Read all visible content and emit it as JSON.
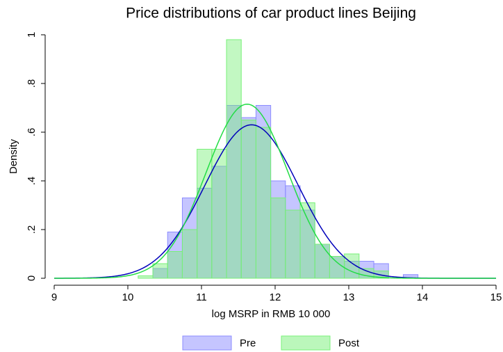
{
  "chart_data": {
    "type": "histogram",
    "title": "Price distributions of car product lines Beijing",
    "x_label": "log MSRP in RMB 10 000",
    "y_label": "Density",
    "bins": [
      10.14,
      10.34,
      10.54,
      10.74,
      10.94,
      11.14,
      11.34,
      11.54,
      11.74,
      11.94,
      12.14,
      12.34,
      12.54,
      12.74,
      12.94,
      13.14,
      13.34,
      13.54,
      13.74,
      13.94,
      14.14
    ],
    "series": [
      {
        "name": "Pre",
        "color": "#8c8cff",
        "line_color": "#0000bb",
        "values": [
          0,
          0.04,
          0.19,
          0.33,
          0.37,
          0.46,
          0.71,
          0.66,
          0.71,
          0.4,
          0.38,
          0.28,
          0.14,
          0.09,
          0.07,
          0.07,
          0.06,
          0,
          0.015,
          0
        ],
        "fit": {
          "type": "normal",
          "mean": 11.68,
          "sd": 0.633
        }
      },
      {
        "name": "Post",
        "color": "#78f078",
        "line_color": "#22dd44",
        "values": [
          0.01,
          0.06,
          0.11,
          0.2,
          0.53,
          0.53,
          0.98,
          0.65,
          0.62,
          0.33,
          0.28,
          0.31,
          0.14,
          0.09,
          0.1,
          0.04,
          0.03,
          0,
          0,
          0
        ],
        "fit": {
          "type": "normal",
          "mean": 11.62,
          "sd": 0.558
        }
      }
    ],
    "xlim": [
      9,
      15
    ],
    "xticks": [
      9,
      10,
      11,
      12,
      13,
      14,
      15
    ],
    "ylim": [
      0,
      1
    ],
    "yticks": [
      0,
      {
        "value": 0.2,
        "label": ".2"
      },
      {
        "value": 0.4,
        "label": ".4"
      },
      {
        "value": 0.6,
        "label": ".6"
      },
      {
        "value": 0.8,
        "label": ".8"
      },
      1
    ],
    "legend": "bottom"
  }
}
